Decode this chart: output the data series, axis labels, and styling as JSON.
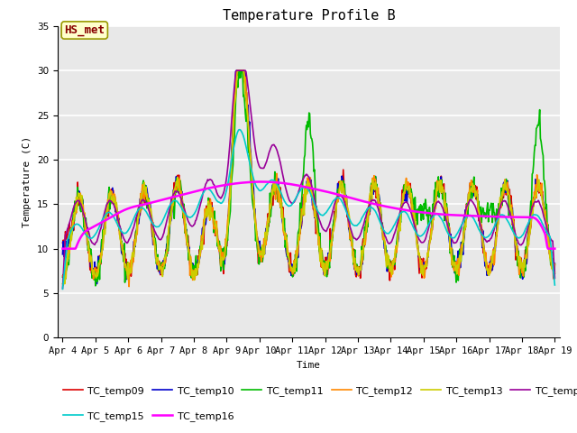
{
  "title": "Temperature Profile B",
  "xlabel": "Time",
  "ylabel": "Temperature (C)",
  "ylim": [
    0,
    35
  ],
  "series": {
    "TC_temp09": {
      "color": "#dd0000",
      "lw": 1.2
    },
    "TC_temp10": {
      "color": "#0000cc",
      "lw": 1.2
    },
    "TC_temp11": {
      "color": "#00bb00",
      "lw": 1.2
    },
    "TC_temp12": {
      "color": "#ff8800",
      "lw": 1.2
    },
    "TC_temp13": {
      "color": "#cccc00",
      "lw": 1.2
    },
    "TC_temp14": {
      "color": "#990099",
      "lw": 1.2
    },
    "TC_temp15": {
      "color": "#00cccc",
      "lw": 1.2
    },
    "TC_temp16": {
      "color": "#ff00ff",
      "lw": 1.8
    }
  },
  "annotation_text": "HS_met",
  "annotation_color": "#880000",
  "annotation_bg": "#ffffcc",
  "annotation_edge": "#999900",
  "bg_color": "#e8e8e8",
  "grid_color": "#ffffff",
  "start_day": 4,
  "end_day": 19,
  "tick_days": [
    4,
    5,
    6,
    7,
    8,
    9,
    10,
    11,
    12,
    13,
    14,
    15,
    16,
    17,
    18,
    19
  ],
  "yticks": [
    0,
    5,
    10,
    15,
    20,
    25,
    30,
    35
  ],
  "title_fontsize": 11,
  "axis_label_fontsize": 8,
  "tick_fontsize": 7.5,
  "legend_fontsize": 8
}
